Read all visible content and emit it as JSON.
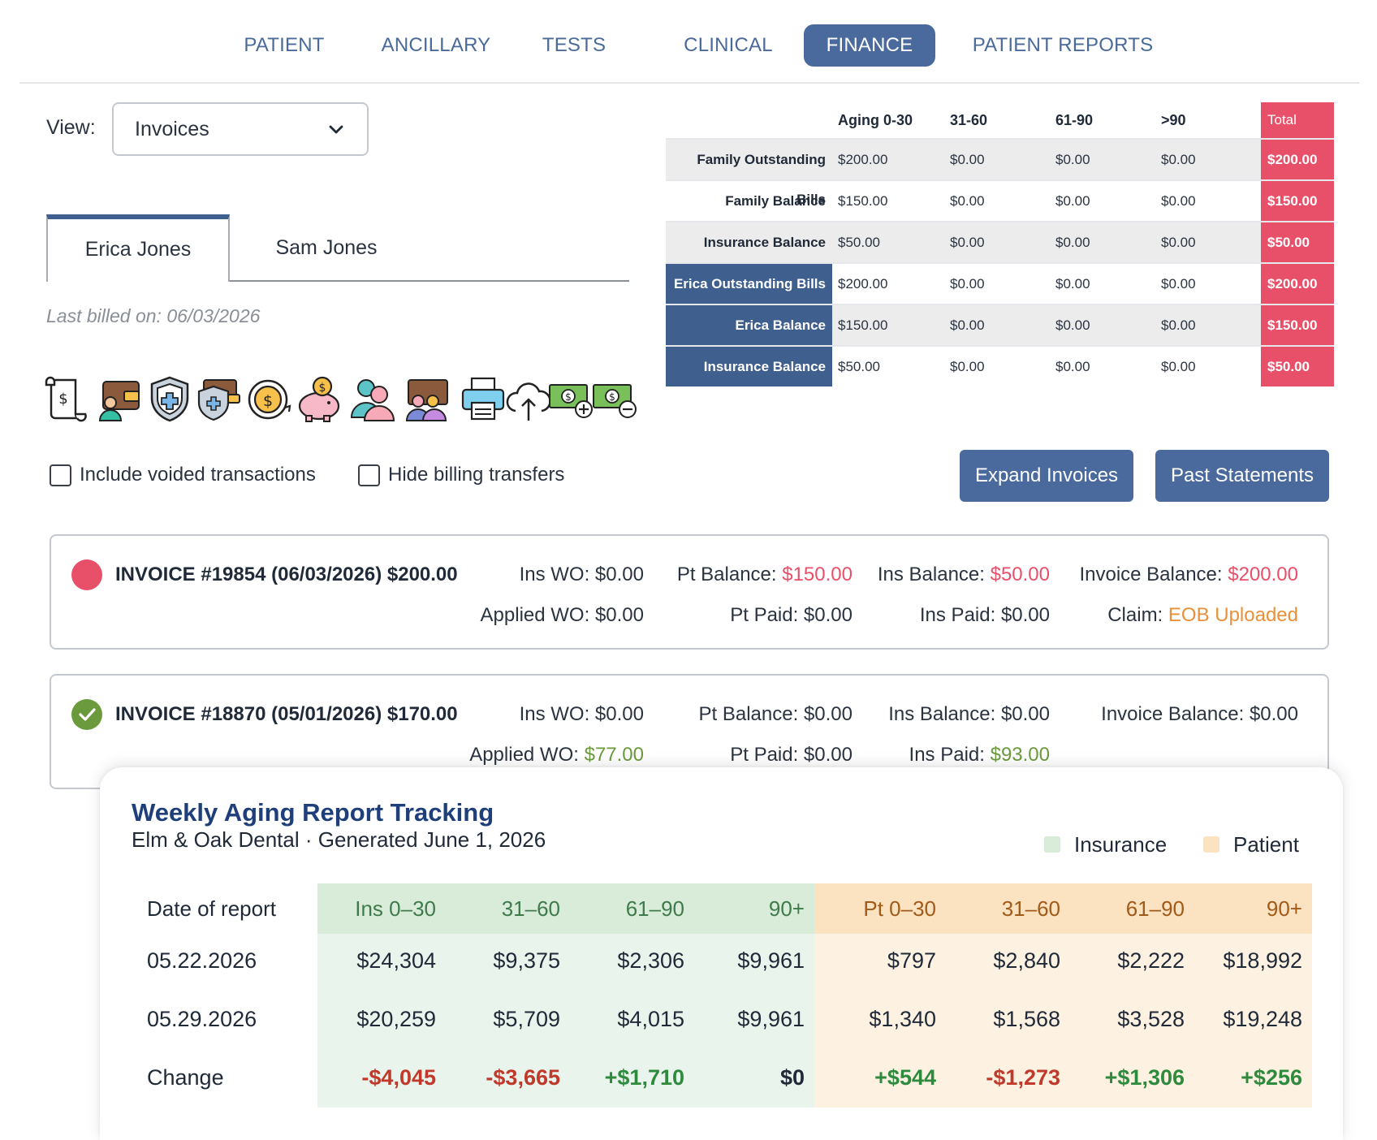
{
  "nav": {
    "tabs": [
      "PATIENT",
      "ANCILLARY",
      "TESTS",
      "CLINICAL",
      "FINANCE",
      "PATIENT REPORTS"
    ],
    "active": "FINANCE"
  },
  "view": {
    "label": "View:",
    "selected": "Invoices"
  },
  "patient_tabs": [
    "Erica Jones",
    "Sam Jones"
  ],
  "last_billed": "Last billed on: 06/03/2026",
  "icons": [
    "bill-scroll-icon",
    "wallet-user-icon",
    "shield-plus-icon",
    "shield-wallet-icon",
    "coin-cycle-icon",
    "piggy-bank-icon",
    "users-icon",
    "wallet-group-icon",
    "printer-icon",
    "cloud-upload-icon",
    "cash-add-icon",
    "cash-remove-icon"
  ],
  "options": {
    "include_voided": "Include voided transactions",
    "hide_transfers": "Hide billing transfers"
  },
  "buttons": {
    "expand": "Expand Invoices",
    "past": "Past Statements"
  },
  "aging": {
    "headers": [
      "Aging 0-30",
      "31-60",
      "61-90",
      ">90",
      "Total"
    ],
    "rows": [
      {
        "label": "Family Outstanding Bills",
        "values": [
          "$200.00",
          "$0.00",
          "$0.00",
          "$0.00"
        ],
        "total": "$200.00"
      },
      {
        "label": "Family Balance",
        "values": [
          "$150.00",
          "$0.00",
          "$0.00",
          "$0.00"
        ],
        "total": "$150.00"
      },
      {
        "label": "Insurance Balance",
        "values": [
          "$50.00",
          "$0.00",
          "$0.00",
          "$0.00"
        ],
        "total": "$50.00"
      },
      {
        "label": "Erica Outstanding Bills",
        "values": [
          "$200.00",
          "$0.00",
          "$0.00",
          "$0.00"
        ],
        "total": "$200.00"
      },
      {
        "label": "Erica Balance",
        "values": [
          "$150.00",
          "$0.00",
          "$0.00",
          "$0.00"
        ],
        "total": "$150.00"
      },
      {
        "label": "Insurance Balance",
        "values": [
          "$50.00",
          "$0.00",
          "$0.00",
          "$0.00"
        ],
        "total": "$50.00"
      }
    ]
  },
  "invoices": [
    {
      "title": "INVOICE #19854 (06/03/2026) $200.00",
      "status_color": "#e8506a",
      "ins_wo": "Ins WO: $0.00",
      "applied_wo_label": "Applied WO: ",
      "applied_wo": "$0.00",
      "pt_balance_label": "Pt Balance: ",
      "pt_balance": "$150.00",
      "pt_paid": "Pt Paid: $0.00",
      "ins_balance_label": "Ins Balance: ",
      "ins_balance": "$50.00",
      "ins_paid_label": "Ins Paid: ",
      "ins_paid": "$0.00",
      "invoice_balance_label": "Invoice Balance: ",
      "invoice_balance": "$200.00",
      "claim_label": "Claim: ",
      "claim": "EOB Uploaded"
    },
    {
      "title": "INVOICE #18870 (05/01/2026) $170.00",
      "status_color": "#6b9a3c",
      "ins_wo": "Ins WO: $0.00",
      "applied_wo_label": "Applied WO: ",
      "applied_wo": "$77.00",
      "pt_balance_label": "Pt Balance: ",
      "pt_balance": "$0.00",
      "pt_paid": "Pt Paid: $0.00",
      "ins_balance_label": "Ins Balance: ",
      "ins_balance": "$0.00",
      "ins_paid_label": "Ins Paid: ",
      "ins_paid": "$93.00",
      "invoice_balance_label": "Invoice Balance: ",
      "invoice_balance": "$0.00"
    }
  ],
  "report": {
    "title": "Weekly Aging Report Tracking",
    "subtitle": "Elm & Oak Dental · Generated June 1, 2026",
    "legend": [
      "Insurance",
      "Patient"
    ],
    "colors": {
      "insurance": "#d9ecd9",
      "patient": "#fbe2c0"
    },
    "headers": [
      "Date of report",
      "Ins 0–30",
      "31–60",
      "61–90",
      "90+",
      "Pt 0–30",
      "31–60",
      "61–90",
      "90+"
    ],
    "rows": [
      [
        "05.22.2026",
        "$24,304",
        "$9,375",
        "$2,306",
        "$9,961",
        "$797",
        "$2,840",
        "$2,222",
        "$18,992"
      ],
      [
        "05.29.2026",
        "$20,259",
        "$5,709",
        "$4,015",
        "$9,961",
        "$1,340",
        "$1,568",
        "$3,528",
        "$19,248"
      ]
    ],
    "change": [
      "Change",
      "-$4,045",
      "-$3,665",
      "+$1,710",
      "$0",
      "+$544",
      "-$1,273",
      "+$1,306",
      "+$256"
    ]
  }
}
